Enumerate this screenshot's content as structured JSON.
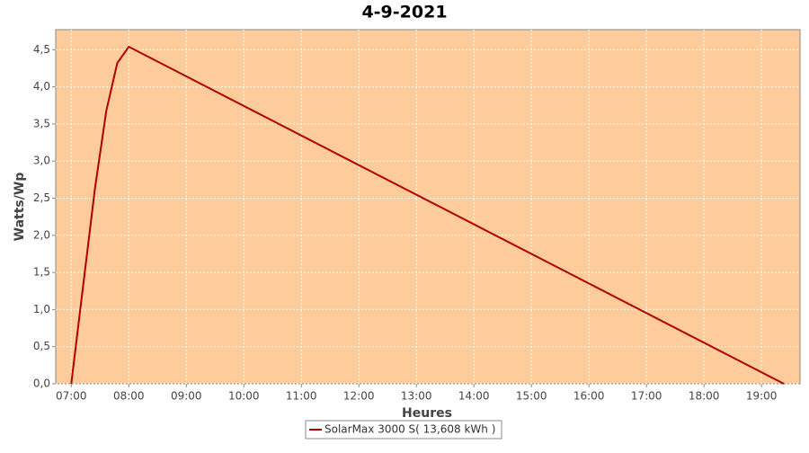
{
  "chart_data": {
    "type": "line",
    "title": "4-9-2021",
    "x_label": "Heures",
    "y_label": "Watts/Wp",
    "x": [
      7.0,
      7.41,
      7.61,
      7.8,
      8.0,
      19.39
    ],
    "series": [
      {
        "name": "SolarMax 3000 S( 13,608 kWh )",
        "color": "#b00000",
        "values": [
          0,
          2.62,
          3.68,
          4.32,
          4.54,
          0
        ]
      }
    ],
    "xlim": [
      6.73,
      19.67
    ],
    "ylim": [
      0,
      4.77
    ],
    "xticks": [
      {
        "value": 7,
        "label": "07:00"
      },
      {
        "value": 8,
        "label": "08:00"
      },
      {
        "value": 9,
        "label": "09:00"
      },
      {
        "value": 10,
        "label": "10:00"
      },
      {
        "value": 11,
        "label": "11:00"
      },
      {
        "value": 12,
        "label": "12:00"
      },
      {
        "value": 13,
        "label": "13:00"
      },
      {
        "value": 14,
        "label": "14:00"
      },
      {
        "value": 15,
        "label": "15:00"
      },
      {
        "value": 16,
        "label": "16:00"
      },
      {
        "value": 17,
        "label": "17:00"
      },
      {
        "value": 18,
        "label": "18:00"
      },
      {
        "value": 19,
        "label": "19:00"
      }
    ],
    "yticks": [
      {
        "value": 0,
        "label": "0,0"
      },
      {
        "value": 0.5,
        "label": "0,5"
      },
      {
        "value": 1,
        "label": "1,0"
      },
      {
        "value": 1.5,
        "label": "1,5"
      },
      {
        "value": 2,
        "label": "2,0"
      },
      {
        "value": 2.5,
        "label": "2,5"
      },
      {
        "value": 3,
        "label": "3,0"
      },
      {
        "value": 3.5,
        "label": "3,5"
      },
      {
        "value": 4,
        "label": "4,0"
      },
      {
        "value": 4.5,
        "label": "4,5"
      }
    ],
    "grid": true,
    "plot_background": "#fecb9a",
    "legend": "bottom"
  }
}
